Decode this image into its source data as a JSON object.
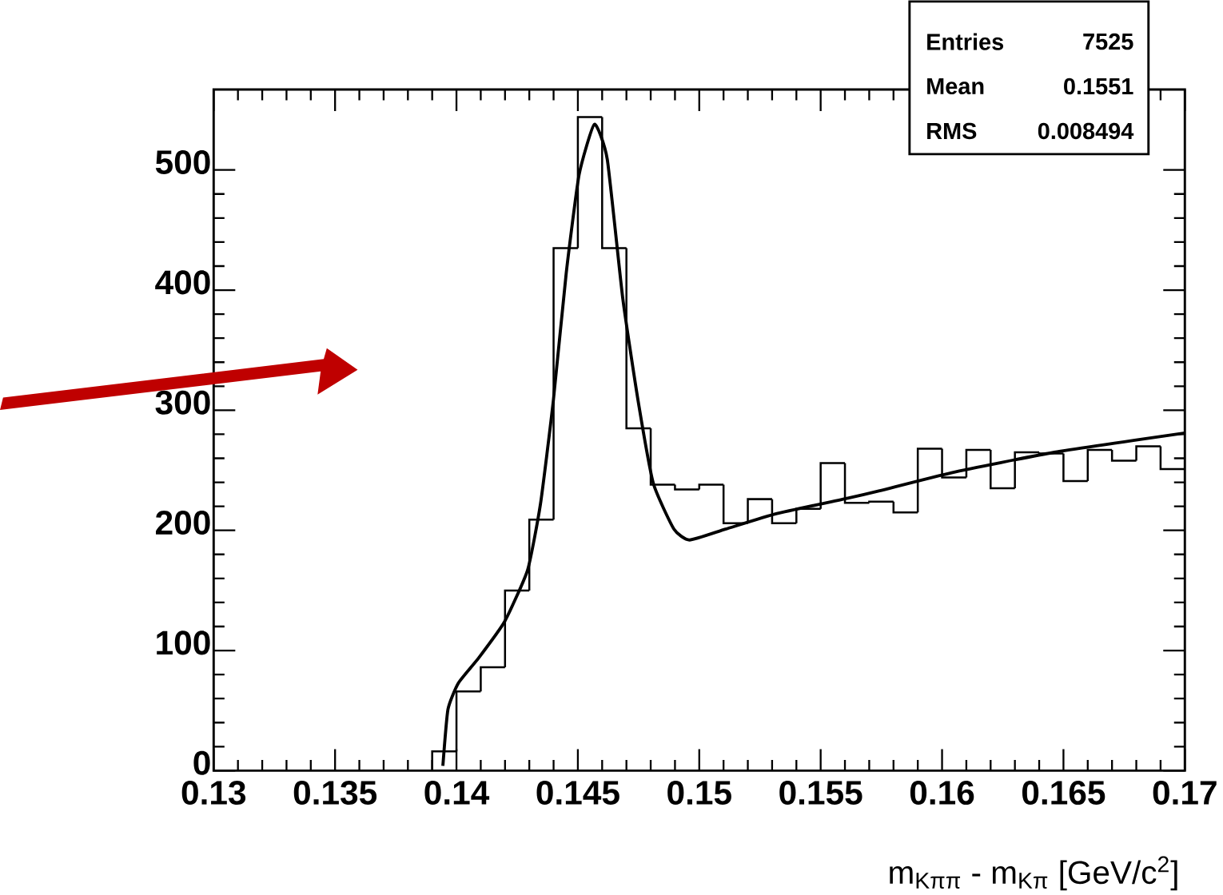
{
  "chart_data": {
    "type": "histogram",
    "xlabel": "m$_{Kππ}$ - m$_{Kπ}$ [GeV/c$^{2}$]",
    "xlim": [
      0.13,
      0.17
    ],
    "xticks": [
      0.13,
      0.135,
      0.14,
      0.145,
      0.15,
      0.155,
      0.16,
      0.165,
      0.17
    ],
    "ylim": [
      0,
      567
    ],
    "yticks": [
      0,
      100,
      200,
      300,
      400,
      500
    ],
    "grid": false,
    "annotations": [
      "Entries",
      "7525",
      "Mean",
      "0.1551",
      "RMS",
      "0.008494"
    ],
    "series": [
      {
        "color": "#000000",
        "bins": [
          0.139,
          0.14,
          0.141,
          0.142,
          0.143,
          0.144,
          0.145,
          0.146,
          0.147,
          0.148,
          0.149,
          0.15,
          0.151,
          0.152,
          0.153,
          0.154,
          0.155,
          0.156,
          0.157,
          0.158,
          0.159,
          0.16,
          0.161,
          0.162,
          0.163,
          0.164,
          0.165,
          0.166,
          0.167,
          0.168,
          0.169,
          0.17
        ],
        "values": [
          16,
          66,
          86,
          150,
          209,
          435,
          544,
          435,
          285,
          238,
          234,
          238,
          206,
          226,
          206,
          218,
          256,
          223,
          224,
          215,
          268,
          244,
          267,
          235,
          265,
          264,
          241,
          267,
          258,
          270,
          251
        ]
      },
      {
        "type": "line",
        "color": "#000000",
        "x": [
          0.13944,
          0.13965,
          0.14008,
          0.14092,
          0.14198,
          0.14293,
          0.14346,
          0.14399,
          0.14452,
          0.14505,
          0.14568,
          0.14621,
          0.14685,
          0.14748,
          0.14811,
          0.14896,
          0.1496,
          0.15108,
          0.1532,
          0.15616,
          0.15743,
          0.16039,
          0.16462,
          0.17
        ],
        "values": [
          4,
          51,
          73,
          94,
          124,
          167,
          222,
          308,
          414,
          496,
          538,
          509,
          393,
          308,
          239,
          201,
          192,
          201,
          214,
          227,
          233,
          248,
          265,
          281
        ]
      }
    ]
  }
}
